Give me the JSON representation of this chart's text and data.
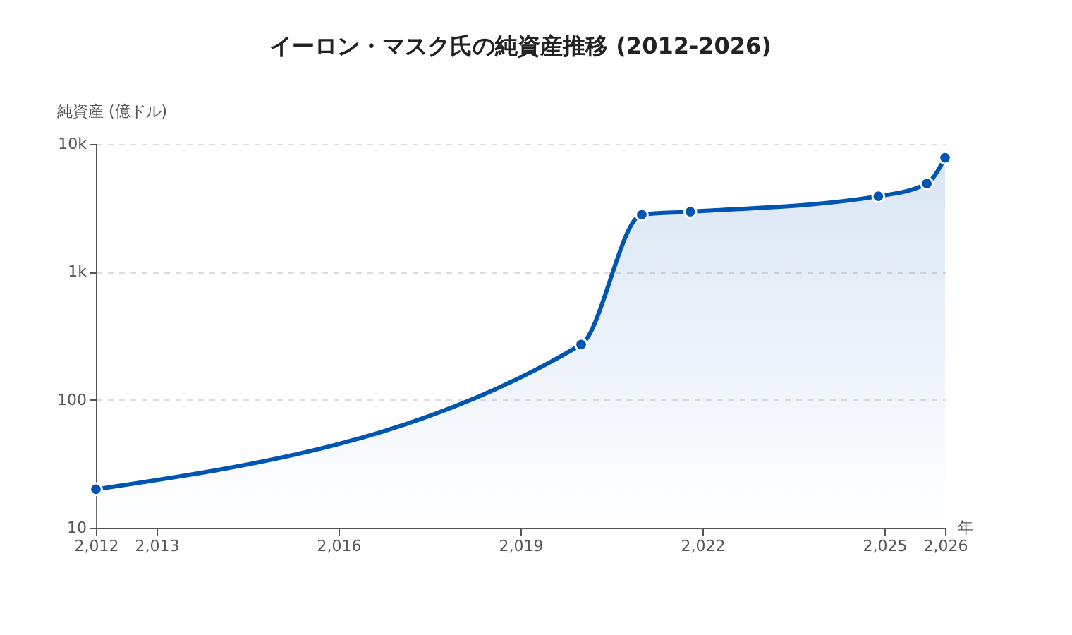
{
  "chart_data": {
    "type": "area",
    "title": "イーロン・マスク氏の純資産推移 (2012-2026)",
    "xlabel": "年",
    "ylabel": "純資産 (億ドル)",
    "x": [
      2012,
      2020,
      2021,
      2021.8,
      2024.9,
      2025.7,
      2026
    ],
    "series": [
      {
        "color": "#0055b3",
        "values": [
          20,
          270,
          2800,
          2950,
          3900,
          4900,
          7800
        ]
      }
    ],
    "log": "y",
    "ylim": [
      10,
      10000
    ],
    "yticks": [
      10,
      100,
      {
        "value": 1000,
        "label": "1k"
      },
      {
        "value": 10000,
        "label": "10k"
      }
    ],
    "xlim": [
      2012,
      2026
    ],
    "xticks": [
      {
        "value": 2012,
        "label": "2,012"
      },
      {
        "value": 2013,
        "label": "2,013"
      },
      {
        "value": 2016,
        "label": "2,016"
      },
      {
        "value": 2019,
        "label": "2,019"
      },
      {
        "value": 2022,
        "label": "2,022"
      },
      {
        "value": 2025,
        "label": "2,025"
      },
      {
        "value": 2026,
        "label": "2,026"
      }
    ],
    "grid": "y",
    "marker": "circle",
    "line_style": "solid"
  }
}
